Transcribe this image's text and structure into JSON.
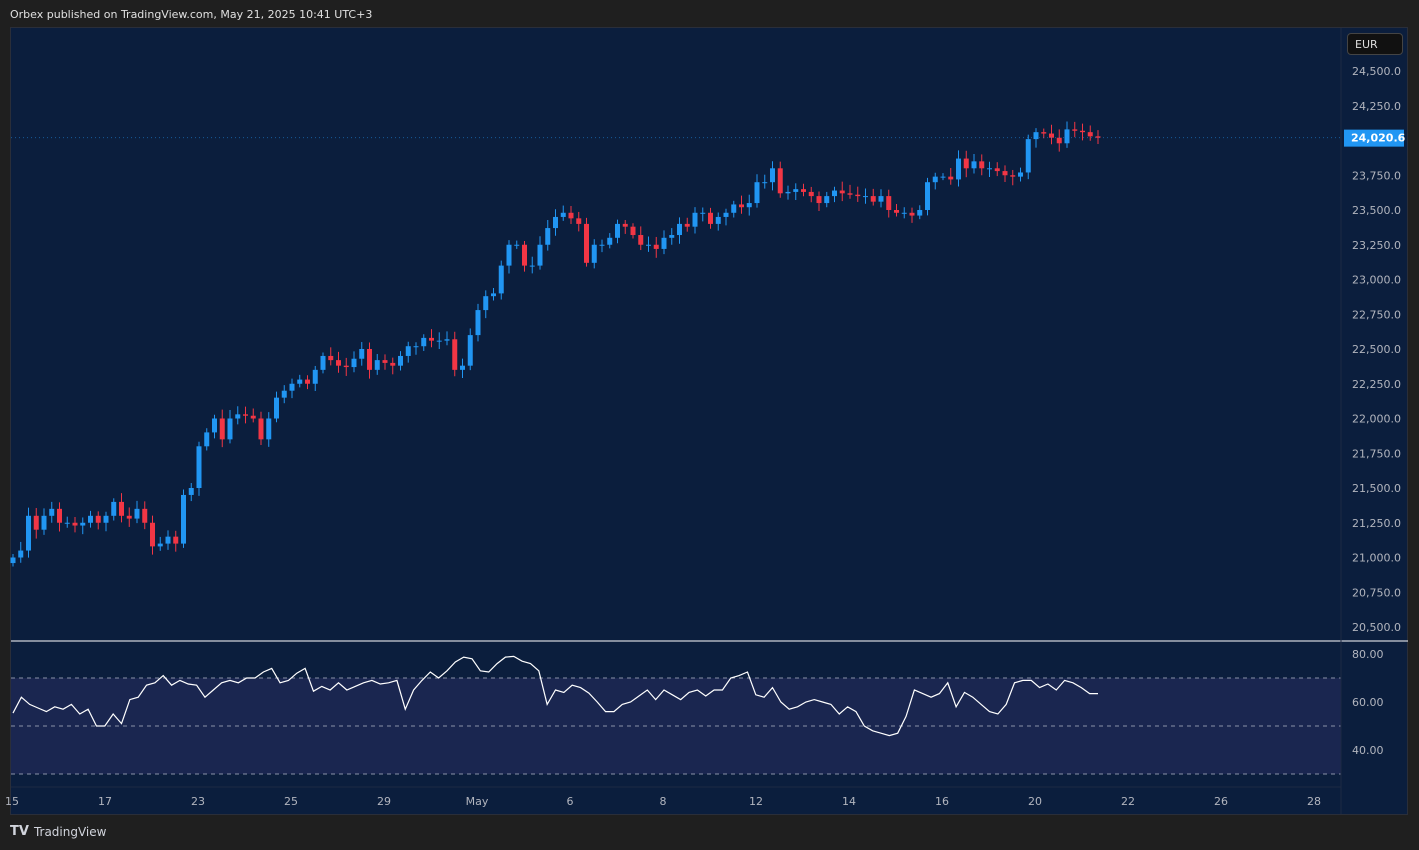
{
  "header": {
    "text": "Orbex published on TradingView.com, May 21, 2025 10:41 UTC+3"
  },
  "currency_button": "EUR",
  "footer": {
    "brand": "TradingView"
  },
  "colors": {
    "up": "#2196f3",
    "down": "#f23645",
    "background": "#0b1e3d",
    "rsi_line": "#ffffff",
    "rsi_band": "#1a2650",
    "last_price_bg": "#2196f3"
  },
  "chart_data": [
    {
      "type": "candlestick",
      "title": "",
      "yaxis_ticks": [
        "24,500.0",
        "24,250.0",
        "23,750.0",
        "23,500.0",
        "23,250.0",
        "23,000.0",
        "22,750.0",
        "22,500.0",
        "22,250.0",
        "22,000.0",
        "21,750.0",
        "21,500.0",
        "21,250.0",
        "21,000.0",
        "20,750.0",
        "20,500.0"
      ],
      "ylim": [
        20430,
        24700
      ],
      "last_price": "24,020.6",
      "last_value": 24020.6,
      "xaxis_ticks": [
        "15",
        "17",
        "23",
        "25",
        "29",
        "May",
        "6",
        "8",
        "12",
        "14",
        "16",
        "20",
        "22",
        "26",
        "28"
      ],
      "open_start": 20960,
      "closes": [
        21000,
        21050,
        21300,
        21200,
        21300,
        21350,
        21250,
        21250,
        21230,
        21250,
        21300,
        21250,
        21300,
        21400,
        21300,
        21280,
        21350,
        21250,
        21080,
        21100,
        21150,
        21100,
        21450,
        21500,
        21800,
        21900,
        22000,
        21850,
        22000,
        22030,
        22020,
        22000,
        21850,
        22000,
        22150,
        22200,
        22250,
        22280,
        22250,
        22350,
        22450,
        22420,
        22380,
        22370,
        22430,
        22500,
        22350,
        22420,
        22400,
        22380,
        22450,
        22520,
        22520,
        22580,
        22560,
        22560,
        22570,
        22350,
        22380,
        22600,
        22780,
        22880,
        22900,
        23100,
        23250,
        23250,
        23100,
        23100,
        23250,
        23370,
        23450,
        23480,
        23440,
        23400,
        23120,
        23250,
        23250,
        23300,
        23400,
        23380,
        23320,
        23250,
        23250,
        23220,
        23300,
        23320,
        23400,
        23380,
        23480,
        23480,
        23400,
        23450,
        23480,
        23540,
        23520,
        23550,
        23700,
        23700,
        23800,
        23620,
        23630,
        23650,
        23630,
        23600,
        23550,
        23600,
        23640,
        23620,
        23610,
        23600,
        23600,
        23560,
        23600,
        23500,
        23480,
        23480,
        23460,
        23500,
        23700,
        23740,
        23740,
        23720,
        23870,
        23800,
        23850,
        23800,
        23800,
        23780,
        23750,
        23740,
        23770,
        24010,
        24060,
        24050,
        24020,
        23980,
        24080,
        24070,
        24060,
        24030,
        24020
      ]
    },
    {
      "type": "line",
      "title": "",
      "yaxis_ticks": [
        "80.00",
        "60.00",
        "40.00"
      ],
      "ylim": [
        26,
        86
      ],
      "bands": [
        70,
        50,
        30
      ],
      "values": [
        55.4,
        62,
        59,
        57.5,
        56,
        58,
        57,
        59,
        55,
        57,
        50,
        50,
        55,
        51,
        61,
        62,
        67,
        68,
        71,
        67,
        69,
        67.5,
        67,
        62,
        65,
        68,
        69,
        68,
        70,
        70,
        72.5,
        74,
        68,
        69,
        72,
        74,
        64.5,
        66.5,
        65,
        68,
        65,
        66.5,
        68,
        69,
        67.5,
        68,
        69,
        57,
        65,
        69,
        72.5,
        70,
        73,
        76.7,
        78.7,
        78,
        73,
        72.5,
        76,
        78.7,
        79,
        77,
        76,
        73,
        59,
        65,
        64,
        67,
        66,
        63.7,
        60,
        56,
        56,
        59,
        60,
        62.5,
        65,
        61,
        65,
        63,
        61,
        64,
        65,
        62.5,
        65,
        65,
        70,
        71,
        72.5,
        63,
        62,
        66,
        60,
        57,
        58,
        60,
        61,
        60,
        59,
        55,
        58,
        56,
        50,
        48,
        47,
        46,
        47,
        54,
        65,
        63.5,
        62,
        63.5,
        68,
        58,
        64,
        62,
        59,
        56,
        55,
        59,
        68,
        69,
        69,
        66,
        67.5,
        65,
        69,
        68,
        66,
        63.5,
        63.5
      ]
    }
  ]
}
